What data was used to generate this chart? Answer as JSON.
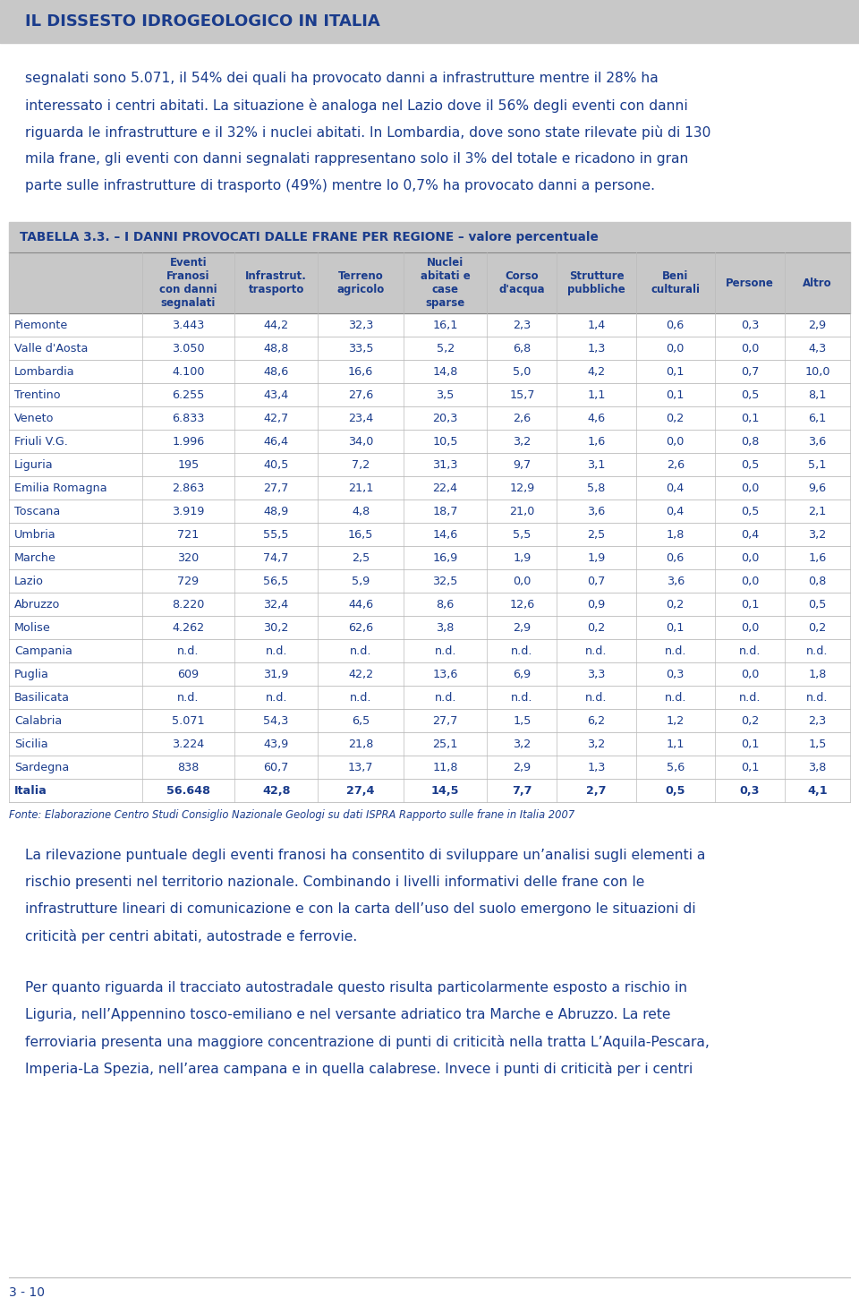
{
  "title": "IL DISSESTO IDROGEOLOGICO IN ITALIA",
  "title_color": "#1a3c8c",
  "title_bg": "#c8c8c8",
  "body_bg": "#ffffff",
  "text_color": "#1a3c8c",
  "para1_lines": [
    "segnalati sono 5.071, il 54% dei quali ha provocato danni a infrastrutture mentre il 28% ha",
    "interessato i centri abitati. La situazione è analoga nel Lazio dove il 56% degli eventi con danni",
    "riguarda le infrastrutture e il 32% i nuclei abitati. In Lombardia, dove sono state rilevate più di 130",
    "mila frane, gli eventi con danni segnalati rappresentano solo il 3% del totale e ricadono in gran",
    "parte sulle infrastrutture di trasporto (49%) mentre lo 0,7% ha provocato danni a persone."
  ],
  "table_title": "TABELLA 3.3. – I DANNI PROVOCATI DALLE FRANE PER REGIONE – valore percentuale",
  "table_title_bg": "#c8c8c8",
  "col_headers": [
    "Eventi\nFranosi\ncon danni\nsegnalati",
    "Infrastrut.\ntrasporto",
    "Terreno\nagricolo",
    "Nuclei\nabitati e\ncase\nsparse",
    "Corso\nd'acqua",
    "Strutture\npubbliche",
    "Beni\nculturali",
    "Persone",
    "Altro"
  ],
  "row_labels": [
    "Piemonte",
    "Valle d'Aosta",
    "Lombardia",
    "Trentino",
    "Veneto",
    "Friuli V.G.",
    "Liguria",
    "Emilia Romagna",
    "Toscana",
    "Umbria",
    "Marche",
    "Lazio",
    "Abruzzo",
    "Molise",
    "Campania",
    "Puglia",
    "Basilicata",
    "Calabria",
    "Sicilia",
    "Sardegna",
    "Italia"
  ],
  "table_data": [
    [
      "3.443",
      "44,2",
      "32,3",
      "16,1",
      "2,3",
      "1,4",
      "0,6",
      "0,3",
      "2,9"
    ],
    [
      "3.050",
      "48,8",
      "33,5",
      "5,2",
      "6,8",
      "1,3",
      "0,0",
      "0,0",
      "4,3"
    ],
    [
      "4.100",
      "48,6",
      "16,6",
      "14,8",
      "5,0",
      "4,2",
      "0,1",
      "0,7",
      "10,0"
    ],
    [
      "6.255",
      "43,4",
      "27,6",
      "3,5",
      "15,7",
      "1,1",
      "0,1",
      "0,5",
      "8,1"
    ],
    [
      "6.833",
      "42,7",
      "23,4",
      "20,3",
      "2,6",
      "4,6",
      "0,2",
      "0,1",
      "6,1"
    ],
    [
      "1.996",
      "46,4",
      "34,0",
      "10,5",
      "3,2",
      "1,6",
      "0,0",
      "0,8",
      "3,6"
    ],
    [
      "195",
      "40,5",
      "7,2",
      "31,3",
      "9,7",
      "3,1",
      "2,6",
      "0,5",
      "5,1"
    ],
    [
      "2.863",
      "27,7",
      "21,1",
      "22,4",
      "12,9",
      "5,8",
      "0,4",
      "0,0",
      "9,6"
    ],
    [
      "3.919",
      "48,9",
      "4,8",
      "18,7",
      "21,0",
      "3,6",
      "0,4",
      "0,5",
      "2,1"
    ],
    [
      "721",
      "55,5",
      "16,5",
      "14,6",
      "5,5",
      "2,5",
      "1,8",
      "0,4",
      "3,2"
    ],
    [
      "320",
      "74,7",
      "2,5",
      "16,9",
      "1,9",
      "1,9",
      "0,6",
      "0,0",
      "1,6"
    ],
    [
      "729",
      "56,5",
      "5,9",
      "32,5",
      "0,0",
      "0,7",
      "3,6",
      "0,0",
      "0,8"
    ],
    [
      "8.220",
      "32,4",
      "44,6",
      "8,6",
      "12,6",
      "0,9",
      "0,2",
      "0,1",
      "0,5"
    ],
    [
      "4.262",
      "30,2",
      "62,6",
      "3,8",
      "2,9",
      "0,2",
      "0,1",
      "0,0",
      "0,2"
    ],
    [
      "n.d.",
      "n.d.",
      "n.d.",
      "n.d.",
      "n.d.",
      "n.d.",
      "n.d.",
      "n.d.",
      "n.d."
    ],
    [
      "609",
      "31,9",
      "42,2",
      "13,6",
      "6,9",
      "3,3",
      "0,3",
      "0,0",
      "1,8"
    ],
    [
      "n.d.",
      "n.d.",
      "n.d.",
      "n.d.",
      "n.d.",
      "n.d.",
      "n.d.",
      "n.d.",
      "n.d."
    ],
    [
      "5.071",
      "54,3",
      "6,5",
      "27,7",
      "1,5",
      "6,2",
      "1,2",
      "0,2",
      "2,3"
    ],
    [
      "3.224",
      "43,9",
      "21,8",
      "25,1",
      "3,2",
      "3,2",
      "1,1",
      "0,1",
      "1,5"
    ],
    [
      "838",
      "60,7",
      "13,7",
      "11,8",
      "2,9",
      "1,3",
      "5,6",
      "0,1",
      "3,8"
    ],
    [
      "56.648",
      "42,8",
      "27,4",
      "14,5",
      "7,7",
      "2,7",
      "0,5",
      "0,3",
      "4,1"
    ]
  ],
  "fonte": "Fonte: Elaborazione Centro Studi Consiglio Nazionale Geologi su dati ISPRA Rapporto sulle frane in Italia 2007",
  "para2_lines": [
    "La rilevazione puntuale degli eventi franosi ha consentito di sviluppare un’analisi sugli elementi a",
    "rischio presenti nel territorio nazionale. Combinando i livelli informativi delle frane con le",
    "infrastrutture lineari di comunicazione e con la carta dell’uso del suolo emergono le situazioni di",
    "criticità per centri abitati, autostrade e ferrovie."
  ],
  "para3_lines": [
    "Per quanto riguarda il tracciato autostradale questo risulta particolarmente esposto a rischio in",
    "Liguria, nell’Appennino tosco-emiliano e nel versante adriatico tra Marche e Abruzzo. La rete",
    "ferroviaria presenta una maggiore concentrazione di punti di criticità nella tratta L’Aquila-Pescara,",
    "Imperia-La Spezia, nell’area campana e in quella calabrese. Invece i punti di criticità per i centri"
  ],
  "footer": "3 - 10"
}
